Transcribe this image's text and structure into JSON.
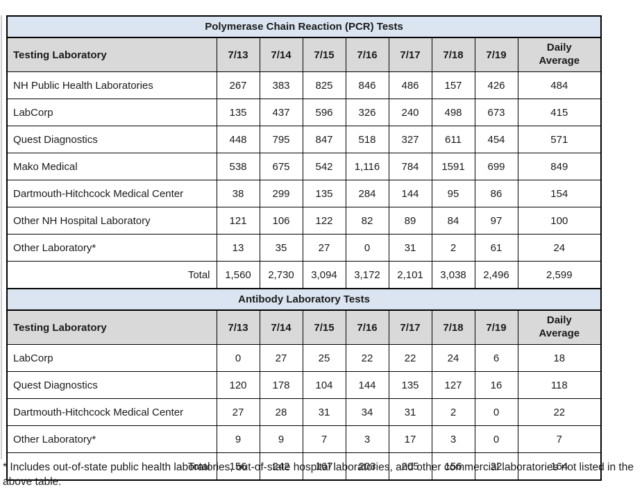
{
  "colors": {
    "section_title_bg": "#dbe5f1",
    "header_bg": "#d9d9d9",
    "border": "#000000"
  },
  "columns": {
    "lab": "Testing Laboratory",
    "dates": [
      "7/13",
      "7/14",
      "7/15",
      "7/16",
      "7/17",
      "7/18",
      "7/19"
    ],
    "daily_avg": [
      "Daily",
      "Average"
    ]
  },
  "pcr": {
    "title": "Polymerase Chain Reaction (PCR) Tests",
    "rows": [
      {
        "label": "NH Public Health Laboratories",
        "values": [
          "267",
          "383",
          "825",
          "846",
          "486",
          "157",
          "426",
          "484"
        ]
      },
      {
        "label": "LabCorp",
        "values": [
          "135",
          "437",
          "596",
          "326",
          "240",
          "498",
          "673",
          "415"
        ]
      },
      {
        "label": "Quest Diagnostics",
        "values": [
          "448",
          "795",
          "847",
          "518",
          "327",
          "611",
          "454",
          "571"
        ]
      },
      {
        "label": "Mako Medical",
        "values": [
          "538",
          "675",
          "542",
          "1,116",
          "784",
          "1591",
          "699",
          "849"
        ]
      },
      {
        "label": "Dartmouth-Hitchcock Medical Center",
        "values": [
          "38",
          "299",
          "135",
          "284",
          "144",
          "95",
          "86",
          "154"
        ]
      },
      {
        "label": "Other NH Hospital Laboratory",
        "values": [
          "121",
          "106",
          "122",
          "82",
          "89",
          "84",
          "97",
          "100"
        ]
      },
      {
        "label": "Other Laboratory*",
        "values": [
          "13",
          "35",
          "27",
          "0",
          "31",
          "2",
          "61",
          "24"
        ]
      },
      {
        "label": "Total",
        "total": true,
        "values": [
          "1,560",
          "2,730",
          "3,094",
          "3,172",
          "2,101",
          "3,038",
          "2,496",
          "2,599"
        ]
      }
    ]
  },
  "antibody": {
    "title": "Antibody Laboratory Tests",
    "rows": [
      {
        "label": "LabCorp",
        "values": [
          "0",
          "27",
          "25",
          "22",
          "22",
          "24",
          "6",
          "18"
        ]
      },
      {
        "label": "Quest Diagnostics",
        "values": [
          "120",
          "178",
          "104",
          "144",
          "135",
          "127",
          "16",
          "118"
        ]
      },
      {
        "label": "Dartmouth-Hitchcock Medical Center",
        "values": [
          "27",
          "28",
          "31",
          "34",
          "31",
          "2",
          "0",
          "22"
        ]
      },
      {
        "label": "Other Laboratory*",
        "values": [
          "9",
          "9",
          "7",
          "3",
          "17",
          "3",
          "0",
          "7"
        ]
      },
      {
        "label": "Total",
        "total": true,
        "values": [
          "156",
          "242",
          "167",
          "203",
          "205",
          "156",
          "22",
          "164"
        ]
      }
    ]
  },
  "footnote": "* Includes out-of-state public health laboratories, out-of-state hospital laboratories, and other commercial laboratories not listed in the above table."
}
